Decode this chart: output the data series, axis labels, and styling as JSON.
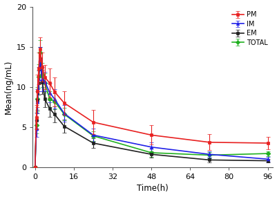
{
  "time": [
    0,
    0.5,
    1,
    1.5,
    2,
    3,
    4,
    6,
    8,
    12,
    24,
    48,
    72,
    96
  ],
  "PM": {
    "mean": [
      0,
      6.2,
      9.5,
      12.3,
      14.7,
      12.5,
      11.2,
      10.5,
      9.4,
      8.0,
      5.6,
      4.0,
      3.1,
      3.0
    ],
    "err": [
      0,
      1.5,
      2.0,
      2.0,
      1.5,
      1.8,
      1.5,
      1.8,
      1.8,
      1.5,
      1.5,
      1.2,
      1.0,
      0.8
    ],
    "color": "#e82020",
    "marker": "s",
    "label": "PM"
  },
  "IM": {
    "mean": [
      0,
      4.8,
      8.2,
      11.0,
      13.5,
      11.0,
      10.7,
      9.3,
      8.5,
      6.7,
      4.0,
      2.5,
      1.6,
      1.0
    ],
    "err": [
      0,
      1.0,
      1.5,
      1.5,
      1.5,
      1.5,
      1.2,
      1.2,
      1.2,
      1.0,
      0.8,
      0.6,
      0.4,
      0.3
    ],
    "color": "#2020e8",
    "marker": "^",
    "label": "IM"
  },
  "EM": {
    "mean": [
      0,
      5.8,
      8.3,
      10.5,
      13.5,
      10.6,
      8.5,
      7.3,
      6.6,
      5.1,
      3.0,
      1.6,
      0.9,
      0.8
    ],
    "err": [
      0,
      1.0,
      1.2,
      1.5,
      1.5,
      1.5,
      1.0,
      1.0,
      1.0,
      0.8,
      0.6,
      0.4,
      0.3,
      0.2
    ],
    "color": "#202020",
    "marker": "s",
    "label": "EM"
  },
  "TOTAL": {
    "mean": [
      0,
      5.2,
      8.5,
      11.3,
      14.3,
      11.5,
      10.5,
      8.5,
      8.2,
      6.6,
      3.9,
      1.8,
      1.5,
      1.7
    ],
    "err": [
      0,
      1.0,
      1.5,
      1.5,
      1.5,
      1.5,
      1.2,
      1.0,
      1.0,
      0.8,
      0.6,
      0.5,
      0.4,
      0.3
    ],
    "color": "#20b020",
    "marker": "D",
    "label": "TOTAL"
  },
  "xlabel": "Time(h)",
  "ylabel": "Mean(ng/mL)",
  "xlim": [
    -1,
    98
  ],
  "ylim": [
    0,
    20
  ],
  "xticks": [
    0,
    16,
    32,
    48,
    64,
    80,
    96
  ],
  "yticks": [
    0,
    5,
    10,
    15,
    20
  ],
  "figsize": [
    4.01,
    2.85
  ],
  "dpi": 100
}
